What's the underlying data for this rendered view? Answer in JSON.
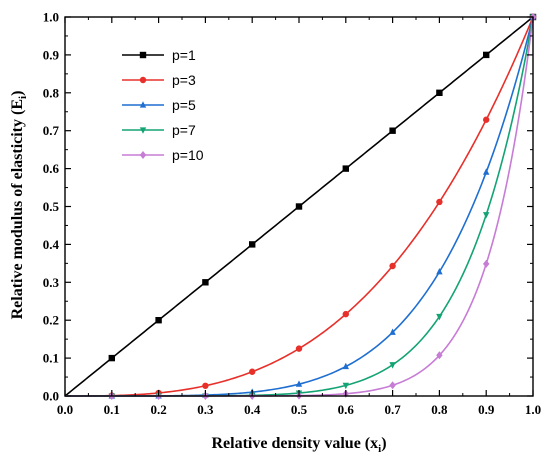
{
  "chart_data": {
    "type": "line",
    "title": "",
    "xlabel": "Relative density value (x",
    "xlabel_sub": "i",
    "xlabel_end": ")",
    "ylabel": "Relative modulus of elasticity (E",
    "ylabel_sub": "i",
    "ylabel_end": ")",
    "xlim": [
      0.0,
      1.0
    ],
    "ylim": [
      0.0,
      1.0
    ],
    "xticks": [
      "0.0",
      "0.1",
      "0.2",
      "0.3",
      "0.4",
      "0.5",
      "0.6",
      "0.7",
      "0.8",
      "0.9",
      "1.0"
    ],
    "yticks": [
      "0.0",
      "0.1",
      "0.2",
      "0.3",
      "0.4",
      "0.5",
      "0.6",
      "0.7",
      "0.8",
      "0.9",
      "1.0"
    ],
    "grid": false,
    "legend_position": "top-left",
    "x": [
      0.1,
      0.2,
      0.3,
      0.4,
      0.5,
      0.6,
      0.7,
      0.8,
      0.9,
      1.0
    ],
    "series": [
      {
        "name": "p=1",
        "color": "#000000",
        "marker": "square",
        "exponent": 1,
        "values": [
          0.1,
          0.2,
          0.3,
          0.4,
          0.5,
          0.6,
          0.7,
          0.8,
          0.9,
          1.0
        ]
      },
      {
        "name": "p=3",
        "color": "#e8302b",
        "marker": "circle",
        "exponent": 3,
        "values": [
          0.001,
          0.008,
          0.027,
          0.064,
          0.125,
          0.216,
          0.343,
          0.512,
          0.729,
          1.0
        ]
      },
      {
        "name": "p=5",
        "color": "#1f6fd1",
        "marker": "triangle-up",
        "exponent": 5,
        "values": [
          1e-05,
          0.00032,
          0.00243,
          0.01024,
          0.03125,
          0.07776,
          0.16807,
          0.32768,
          0.59049,
          1.0
        ]
      },
      {
        "name": "p=7",
        "color": "#13a374",
        "marker": "triangle-down",
        "exponent": 7,
        "values": [
          1e-07,
          1.28e-05,
          0.000219,
          0.00164,
          0.00781,
          0.028,
          0.0824,
          0.2097,
          0.4783,
          1.0
        ]
      },
      {
        "name": "p=10",
        "color": "#c77cd6",
        "marker": "diamond",
        "exponent": 10,
        "values": [
          0.0,
          1e-07,
          5.9e-06,
          0.000105,
          0.000977,
          0.00605,
          0.0282,
          0.1074,
          0.3487,
          1.0
        ]
      }
    ]
  }
}
